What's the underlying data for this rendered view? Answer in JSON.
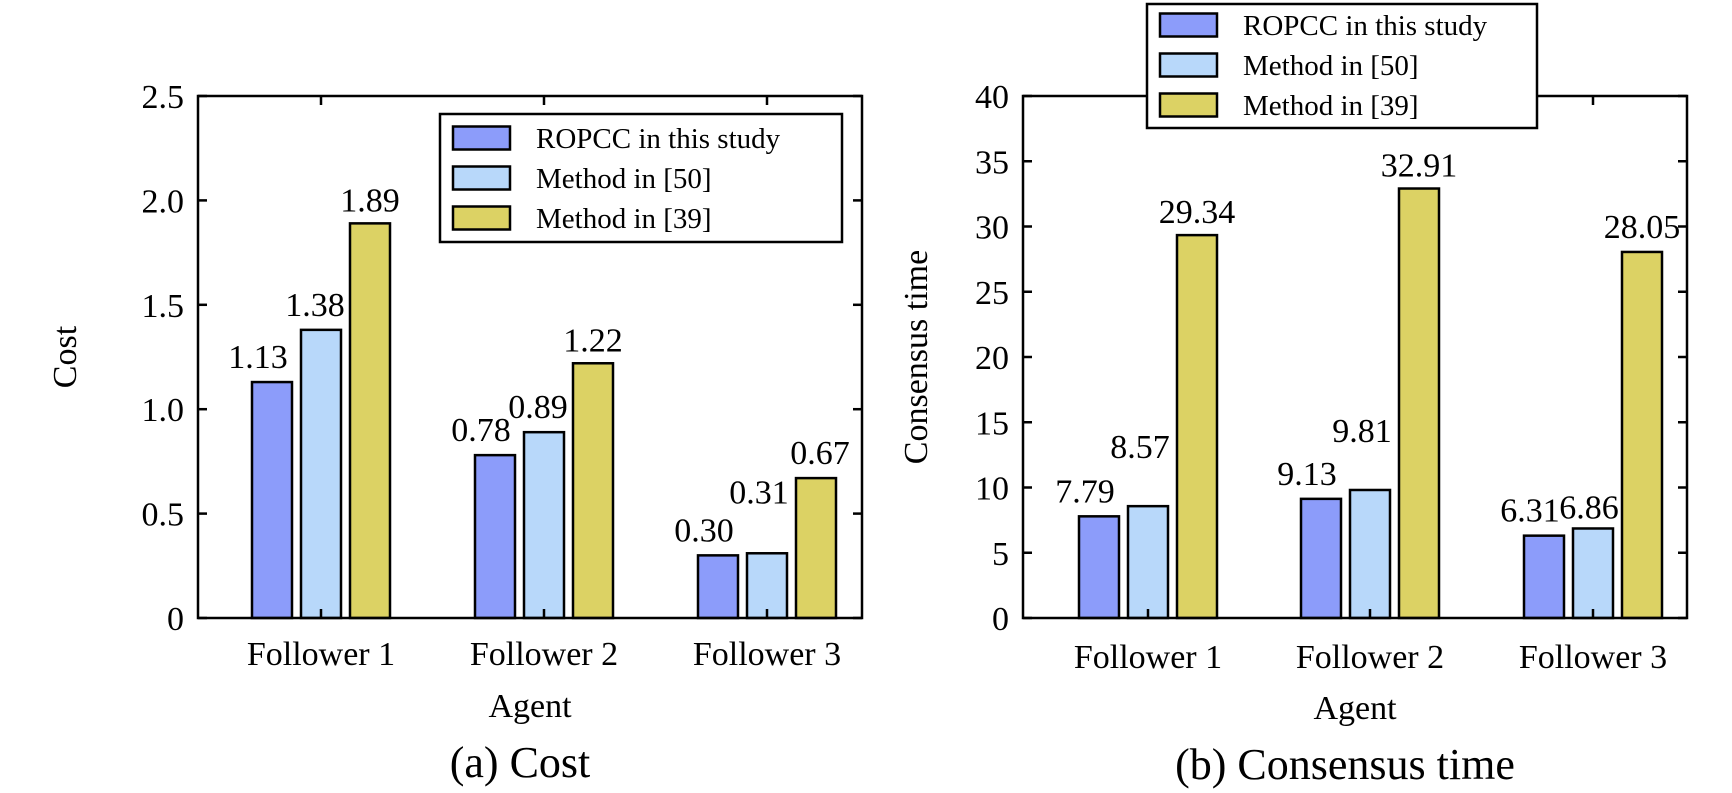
{
  "chart_data": [
    {
      "type": "bar",
      "caption": "(a) Cost",
      "xlabel": "Agent",
      "ylabel": "Cost",
      "categories": [
        "Follower 1",
        "Follower 2",
        "Follower 3"
      ],
      "ylim": [
        0,
        2.5
      ],
      "yticks": [
        0,
        0.5,
        1.0,
        1.5,
        2.0,
        2.5
      ],
      "ytick_labels": [
        "0",
        "0.5",
        "1.0",
        "1.5",
        "2.0",
        "2.5"
      ],
      "legend_position": "top-right, inside",
      "grid": false,
      "series": [
        {
          "name": "ROPCC in this study",
          "color": "#8c9cfa",
          "values": [
            1.13,
            0.78,
            0.3
          ],
          "labels": [
            "1.13",
            "0.78",
            "0.30"
          ]
        },
        {
          "name": "Method in [50]",
          "color": "#b8d8fa",
          "values": [
            1.38,
            0.89,
            0.31
          ],
          "labels": [
            "1.38",
            "0.89",
            "0.31"
          ]
        },
        {
          "name": "Method in [39]",
          "color": "#dcd264",
          "values": [
            1.89,
            1.22,
            0.67
          ],
          "labels": [
            "1.89",
            "1.22",
            "0.67"
          ]
        }
      ]
    },
    {
      "type": "bar",
      "caption": "(b) Consensus time",
      "xlabel": "Agent",
      "ylabel": "Consensus time",
      "categories": [
        "Follower 1",
        "Follower 2",
        "Follower 3"
      ],
      "ylim": [
        0,
        40
      ],
      "yticks": [
        0,
        5,
        10,
        15,
        20,
        25,
        30,
        35,
        40
      ],
      "ytick_labels": [
        "0",
        "5",
        "10",
        "15",
        "20",
        "25",
        "30",
        "35",
        "40"
      ],
      "legend_position": "top, above plot",
      "grid": false,
      "series": [
        {
          "name": "ROPCC in this study",
          "color": "#8c9cfa",
          "values": [
            7.79,
            9.13,
            6.31
          ],
          "labels": [
            "7.79",
            "9.13",
            "6.31"
          ]
        },
        {
          "name": "Method in [50]",
          "color": "#b8d8fa",
          "values": [
            8.57,
            9.81,
            6.86
          ],
          "labels": [
            "8.57",
            "9.81",
            "6.86"
          ]
        },
        {
          "name": "Method in [39]",
          "color": "#dcd264",
          "values": [
            29.34,
            32.91,
            28.05
          ],
          "labels": [
            "29.34",
            "32.91",
            "28.05"
          ]
        }
      ]
    }
  ]
}
